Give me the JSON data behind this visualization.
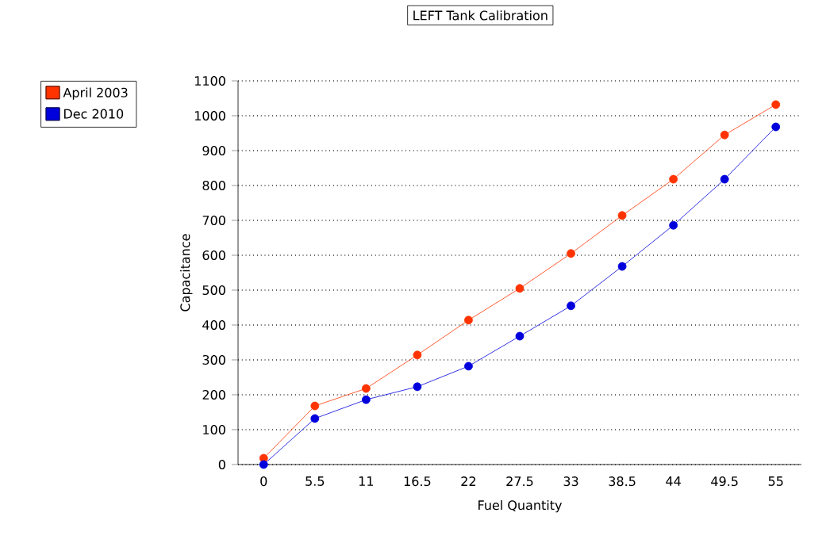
{
  "chart_data": {
    "type": "line",
    "title": "LEFT Tank Calibration",
    "xlabel": "Fuel Quantity",
    "ylabel": "Capacitance",
    "categories": [
      "0",
      "5.5",
      "11",
      "16.5",
      "22",
      "27.5",
      "33",
      "38.5",
      "44",
      "49.5",
      "55"
    ],
    "series": [
      {
        "name": "April 2003",
        "color": "#ff3300",
        "values": [
          18,
          168,
          218,
          314,
          414,
          505,
          605,
          714,
          818,
          945,
          1032
        ]
      },
      {
        "name": "Dec 2010",
        "color": "#0000dd",
        "values": [
          0,
          132,
          186,
          223,
          282,
          368,
          455,
          568,
          686,
          818,
          968
        ]
      }
    ],
    "ylim": [
      0,
      1100
    ],
    "yticks": [
      0,
      100,
      200,
      300,
      400,
      500,
      600,
      700,
      800,
      900,
      1000,
      1100
    ],
    "grid": "y",
    "legend": "left",
    "marker": "circle",
    "line_style": "solid"
  }
}
